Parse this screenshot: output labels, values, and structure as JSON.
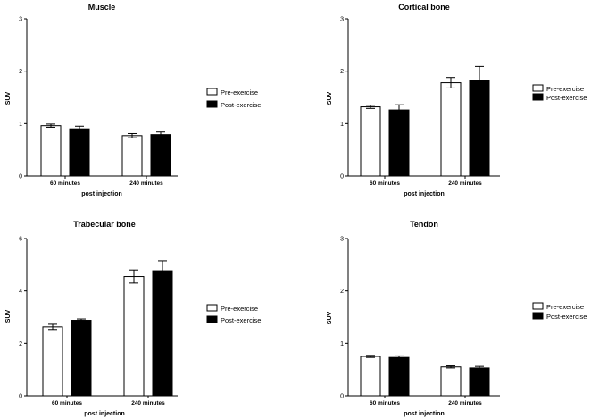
{
  "chart_data": [
    {
      "id": "muscle",
      "type": "bar",
      "title": "Muscle",
      "xlabel": "post injection",
      "ylabel": "SUV",
      "ylim": [
        0,
        3
      ],
      "yticks": [
        0,
        1,
        2,
        3
      ],
      "categories": [
        "60 minutes",
        "240 minutes"
      ],
      "series": [
        {
          "name": "Pre-exercise",
          "color": "#ffffff",
          "values": [
            0.96,
            0.77
          ],
          "errors": [
            0.03,
            0.04
          ]
        },
        {
          "name": "Post-exercise",
          "color": "#000000",
          "values": [
            0.9,
            0.79
          ],
          "errors": [
            0.05,
            0.05
          ]
        }
      ],
      "legend": "right"
    },
    {
      "id": "cortical",
      "type": "bar",
      "title": "Cortical bone",
      "xlabel": "post injection",
      "ylabel": "SUV",
      "ylim": [
        0,
        3
      ],
      "yticks": [
        0,
        1,
        2,
        3
      ],
      "categories": [
        "60 minutes",
        "240 minutes"
      ],
      "series": [
        {
          "name": "Pre-exercise",
          "color": "#ffffff",
          "values": [
            1.32,
            1.78
          ],
          "errors": [
            0.03,
            0.1
          ]
        },
        {
          "name": "Post-exercise",
          "color": "#000000",
          "values": [
            1.26,
            1.82
          ],
          "errors": [
            0.1,
            0.27
          ]
        }
      ],
      "legend": "right"
    },
    {
      "id": "trabecular",
      "type": "bar",
      "title": "Trabecular bone",
      "xlabel": "post injection",
      "ylabel": "SUV",
      "ylim": [
        0,
        6
      ],
      "yticks": [
        0,
        2,
        4,
        6
      ],
      "categories": [
        "60 minutes",
        "240 minutes"
      ],
      "series": [
        {
          "name": "Pre-exercise",
          "color": "#ffffff",
          "values": [
            2.63,
            4.55
          ],
          "errors": [
            0.1,
            0.25
          ]
        },
        {
          "name": "Post-exercise",
          "color": "#000000",
          "values": [
            2.88,
            4.77
          ],
          "errors": [
            0.05,
            0.38
          ]
        }
      ],
      "legend": "right"
    },
    {
      "id": "tendon",
      "type": "bar",
      "title": "Tendon",
      "xlabel": "post injection",
      "ylabel": "SUV",
      "ylim": [
        0,
        3
      ],
      "yticks": [
        0,
        1,
        2,
        3
      ],
      "categories": [
        "60 minutes",
        "240 minutes"
      ],
      "series": [
        {
          "name": "Pre-exercise",
          "color": "#ffffff",
          "values": [
            0.75,
            0.55
          ],
          "errors": [
            0.02,
            0.02
          ]
        },
        {
          "name": "Post-exercise",
          "color": "#000000",
          "values": [
            0.73,
            0.53
          ],
          "errors": [
            0.03,
            0.03
          ]
        }
      ],
      "legend": "right"
    }
  ]
}
